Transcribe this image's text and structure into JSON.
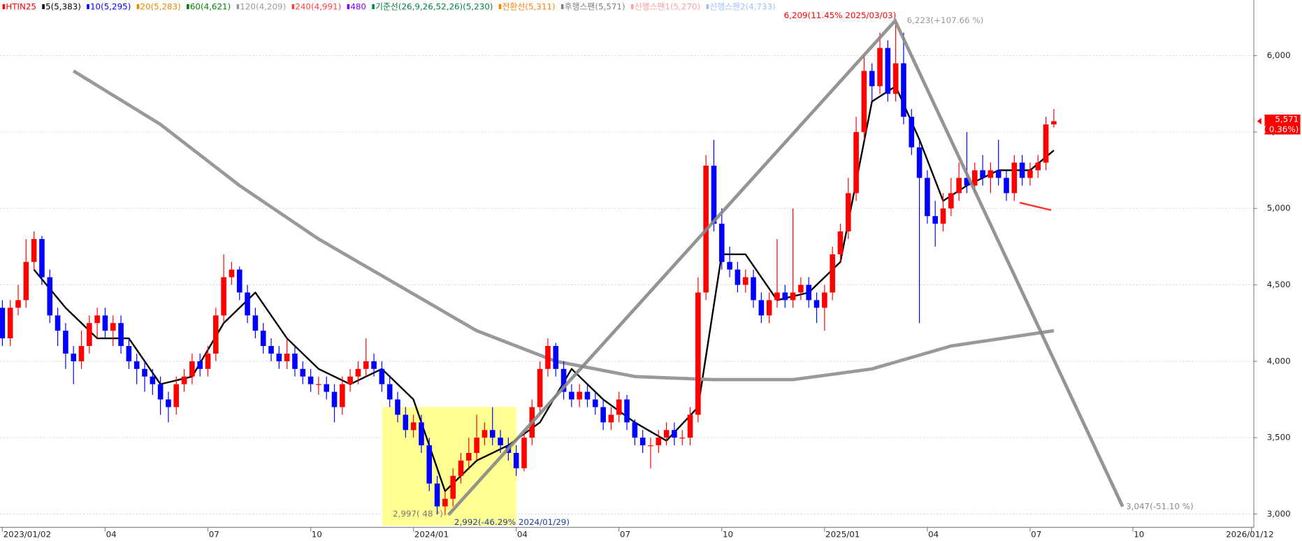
{
  "chart_data": {
    "type": "candlestick",
    "up_color": "#ff0000",
    "down_color": "#0000ff",
    "grid": true,
    "xlim": [
      -0.3,
      158.3
    ],
    "ylim": [
      2913,
      6364
    ],
    "yticks": [
      {
        "value": 3000,
        "label": "3,000"
      },
      {
        "value": 3500,
        "label": "3,500"
      },
      {
        "value": 4000,
        "label": "4,000"
      },
      {
        "value": 4500,
        "label": "4,500"
      },
      {
        "value": 5000,
        "label": "5,000"
      },
      {
        "value": 5500,
        "label": "5,500"
      },
      {
        "value": 6000,
        "label": "6,000"
      }
    ],
    "xticks": [
      {
        "value": 0,
        "label": "2023/01/02"
      },
      {
        "value": 13,
        "label": "04"
      },
      {
        "value": 26,
        "label": "07"
      },
      {
        "value": 39,
        "label": "10"
      },
      {
        "value": 52,
        "label": "2024/01"
      },
      {
        "value": 65,
        "label": "04"
      },
      {
        "value": 78,
        "label": "07"
      },
      {
        "value": 91,
        "label": "10"
      },
      {
        "value": 104,
        "label": "2025/01"
      },
      {
        "value": 117,
        "label": "04"
      },
      {
        "value": 130,
        "label": "07"
      },
      {
        "value": 143,
        "label": "10"
      },
      {
        "value": 158,
        "label": "2026/01/12"
      }
    ],
    "series": [
      {
        "name": "HTIN25",
        "color": "#ff0000"
      },
      {
        "name": "5(5,383)",
        "color": "#000000",
        "width": 2,
        "x": [
          4,
          8,
          12,
          16,
          20,
          24,
          28,
          32,
          36,
          40,
          44,
          48,
          52,
          56,
          60,
          64,
          68,
          72,
          76,
          80,
          84,
          88,
          91,
          94,
          98,
          102,
          106,
          110,
          113,
          116,
          119,
          122,
          126,
          130,
          133
        ],
        "values": [
          4600,
          4350,
          4150,
          4150,
          3850,
          3900,
          4250,
          4450,
          4150,
          3950,
          3850,
          3950,
          3750,
          3150,
          3350,
          3450,
          3600,
          3950,
          3750,
          3600,
          3480,
          3700,
          4700,
          4700,
          4400,
          4450,
          4650,
          5700,
          5800,
          5450,
          5050,
          5150,
          5250,
          5250,
          5380
        ]
      },
      {
        "name": "10(5,295)",
        "color": "#0000ff"
      },
      {
        "name": "20(5,283)",
        "color": "#e08a00"
      },
      {
        "name": "60(4,621)",
        "color": "#008000"
      },
      {
        "name": "120(4,209)",
        "color": "#999999",
        "width": 4,
        "x": [
          9,
          20,
          30,
          40,
          50,
          60,
          70,
          80,
          90,
          100,
          110,
          120,
          133
        ],
        "values": [
          5900,
          5550,
          5150,
          4800,
          4500,
          4200,
          4000,
          3900,
          3880,
          3880,
          3950,
          4100,
          4200
        ]
      },
      {
        "name": "240(4,991)",
        "color": "#ff4040"
      },
      {
        "name": "480",
        "color": "#8000ff"
      },
      {
        "name": "기준선(26,9,26,52,26)(5,230)",
        "color": "#008040"
      },
      {
        "name": "전환선(5,311)",
        "color": "#ff8000"
      },
      {
        "name": "후행스팬(5,571)",
        "color": "#808080"
      },
      {
        "name": "선행스팬1(5,270)",
        "color": "#ffa0a0"
      },
      {
        "name": "선행스팬2(4,733)",
        "color": "#a0c0ff"
      }
    ],
    "ohlc": [
      [
        4350,
        4400,
        4100,
        4150
      ],
      [
        4150,
        4400,
        4100,
        4350
      ],
      [
        4350,
        4500,
        4300,
        4400
      ],
      [
        4400,
        4800,
        4350,
        4650
      ],
      [
        4650,
        4850,
        4600,
        4800
      ],
      [
        4800,
        4820,
        4500,
        4550
      ],
      [
        4550,
        4600,
        4250,
        4300
      ],
      [
        4300,
        4350,
        4100,
        4200
      ],
      [
        4200,
        4250,
        3950,
        4050
      ],
      [
        4050,
        4100,
        3850,
        4000
      ],
      [
        4000,
        4200,
        3950,
        4100
      ],
      [
        4100,
        4300,
        4050,
        4250
      ],
      [
        4250,
        4350,
        4150,
        4300
      ],
      [
        4300,
        4350,
        4150,
        4200
      ],
      [
        4200,
        4300,
        4100,
        4250
      ],
      [
        4250,
        4300,
        4050,
        4100
      ],
      [
        4100,
        4150,
        3950,
        4000
      ],
      [
        4000,
        4050,
        3850,
        3950
      ],
      [
        3950,
        4000,
        3800,
        3900
      ],
      [
        3900,
        3950,
        3780,
        3850
      ],
      [
        3850,
        3900,
        3650,
        3750
      ],
      [
        3750,
        3800,
        3600,
        3700
      ],
      [
        3700,
        3900,
        3650,
        3850
      ],
      [
        3850,
        3950,
        3800,
        3900
      ],
      [
        3900,
        4050,
        3850,
        4000
      ],
      [
        4000,
        4050,
        3900,
        3950
      ],
      [
        3950,
        4100,
        3900,
        4050
      ],
      [
        4050,
        4350,
        4000,
        4300
      ],
      [
        4300,
        4700,
        4250,
        4550
      ],
      [
        4550,
        4650,
        4500,
        4600
      ],
      [
        4600,
        4620,
        4400,
        4450
      ],
      [
        4450,
        4500,
        4250,
        4300
      ],
      [
        4300,
        4350,
        4150,
        4200
      ],
      [
        4200,
        4250,
        4050,
        4100
      ],
      [
        4100,
        4150,
        4000,
        4050
      ],
      [
        4050,
        4100,
        3950,
        4000
      ],
      [
        4000,
        4150,
        3950,
        4050
      ],
      [
        4050,
        4100,
        3900,
        3950
      ],
      [
        3950,
        4000,
        3850,
        3900
      ],
      [
        3900,
        3950,
        3800,
        3850
      ],
      [
        3850,
        3900,
        3780,
        3850
      ],
      [
        3850,
        3900,
        3750,
        3800
      ],
      [
        3800,
        3850,
        3600,
        3700
      ],
      [
        3700,
        3900,
        3650,
        3850
      ],
      [
        3850,
        3950,
        3800,
        3900
      ],
      [
        3900,
        4000,
        3850,
        3950
      ],
      [
        3950,
        4150,
        3900,
        4000
      ],
      [
        4000,
        4050,
        3900,
        3950
      ],
      [
        3950,
        4000,
        3800,
        3850
      ],
      [
        3850,
        3900,
        3700,
        3750
      ],
      [
        3750,
        3800,
        3600,
        3650
      ],
      [
        3650,
        3700,
        3500,
        3550
      ],
      [
        3550,
        3650,
        3500,
        3600
      ],
      [
        3600,
        3650,
        3400,
        3450
      ],
      [
        3450,
        3500,
        3150,
        3200
      ],
      [
        3200,
        3250,
        2997,
        3050
      ],
      [
        3050,
        3150,
        2992,
        3100
      ],
      [
        3100,
        3300,
        3050,
        3250
      ],
      [
        3250,
        3400,
        3200,
        3350
      ],
      [
        3350,
        3500,
        3300,
        3400
      ],
      [
        3400,
        3650,
        3350,
        3500
      ],
      [
        3500,
        3600,
        3450,
        3550
      ],
      [
        3550,
        3700,
        3450,
        3500
      ],
      [
        3500,
        3550,
        3400,
        3450
      ],
      [
        3450,
        3500,
        3350,
        3400
      ],
      [
        3400,
        3450,
        3250,
        3300
      ],
      [
        3300,
        3550,
        3280,
        3500
      ],
      [
        3500,
        3750,
        3450,
        3700
      ],
      [
        3700,
        4000,
        3650,
        3950
      ],
      [
        3950,
        4150,
        3900,
        4100
      ],
      [
        4100,
        4120,
        3900,
        3950
      ],
      [
        3950,
        4000,
        3750,
        3800
      ],
      [
        3800,
        3850,
        3700,
        3750
      ],
      [
        3750,
        3850,
        3700,
        3800
      ],
      [
        3800,
        3850,
        3700,
        3750
      ],
      [
        3750,
        3800,
        3650,
        3700
      ],
      [
        3700,
        3750,
        3550,
        3600
      ],
      [
        3600,
        3700,
        3550,
        3650
      ],
      [
        3650,
        3800,
        3600,
        3750
      ],
      [
        3750,
        3780,
        3550,
        3600
      ],
      [
        3600,
        3620,
        3450,
        3500
      ],
      [
        3500,
        3550,
        3400,
        3450
      ],
      [
        3450,
        3500,
        3300,
        3450
      ],
      [
        3450,
        3550,
        3400,
        3500
      ],
      [
        3500,
        3600,
        3450,
        3550
      ],
      [
        3550,
        3600,
        3450,
        3500
      ],
      [
        3500,
        3550,
        3450,
        3500
      ],
      [
        3500,
        3700,
        3450,
        3650
      ],
      [
        3650,
        4550,
        3600,
        4450
      ],
      [
        4450,
        5350,
        4400,
        5280
      ],
      [
        5280,
        5450,
        4850,
        4900
      ],
      [
        4900,
        5000,
        4600,
        4650
      ],
      [
        4650,
        4750,
        4550,
        4600
      ],
      [
        4600,
        4650,
        4450,
        4500
      ],
      [
        4500,
        4600,
        4450,
        4550
      ],
      [
        4550,
        4600,
        4350,
        4400
      ],
      [
        4400,
        4450,
        4250,
        4300
      ],
      [
        4300,
        4450,
        4250,
        4400
      ],
      [
        4400,
        4800,
        4350,
        4450
      ],
      [
        4450,
        4500,
        4350,
        4400
      ],
      [
        4400,
        5000,
        4350,
        4450
      ],
      [
        4450,
        4550,
        4400,
        4500
      ],
      [
        4500,
        4550,
        4350,
        4400
      ],
      [
        4400,
        4450,
        4250,
        4350
      ],
      [
        4350,
        4500,
        4200,
        4450
      ],
      [
        4450,
        4750,
        4400,
        4700
      ],
      [
        4700,
        4900,
        4650,
        4850
      ],
      [
        4850,
        5200,
        4800,
        5100
      ],
      [
        5100,
        5600,
        5050,
        5500
      ],
      [
        5500,
        6000,
        5450,
        5900
      ],
      [
        5900,
        5950,
        5700,
        5800
      ],
      [
        5800,
        6150,
        5750,
        6050
      ],
      [
        6050,
        6100,
        5700,
        5750
      ],
      [
        5750,
        6209,
        5700,
        5950
      ],
      [
        5950,
        6150,
        5550,
        5600
      ],
      [
        5600,
        5650,
        5350,
        5400
      ],
      [
        5400,
        5450,
        4250,
        5200
      ],
      [
        5200,
        5250,
        4900,
        4950
      ],
      [
        4950,
        5050,
        4750,
        4900
      ],
      [
        4900,
        5100,
        4850,
        5000
      ],
      [
        5000,
        5200,
        4950,
        5100
      ],
      [
        5100,
        5300,
        5050,
        5200
      ],
      [
        5200,
        5500,
        5100,
        5150
      ],
      [
        5150,
        5300,
        5100,
        5250
      ],
      [
        5250,
        5350,
        5150,
        5200
      ],
      [
        5200,
        5300,
        5100,
        5250
      ],
      [
        5250,
        5450,
        5150,
        5200
      ],
      [
        5200,
        5250,
        5050,
        5100
      ],
      [
        5100,
        5350,
        5050,
        5300
      ],
      [
        5300,
        5350,
        5150,
        5200
      ],
      [
        5200,
        5300,
        5150,
        5250
      ],
      [
        5250,
        5350,
        5200,
        5300
      ],
      [
        5300,
        5600,
        5250,
        5550
      ],
      [
        5550,
        5650,
        5530,
        5571
      ]
    ],
    "last_price_label": "5,571",
    "last_change_label": "( 0.36%)",
    "annotations": {
      "peak": "6,209(11.45% 2025/03/03)",
      "peak_gain": "6,223(+107.66 %)",
      "low_a": "2,997( 48 *)",
      "low_b": "2,992(-46.29% 2024/01/29)",
      "target": "3,047(-51.10 %)"
    }
  }
}
